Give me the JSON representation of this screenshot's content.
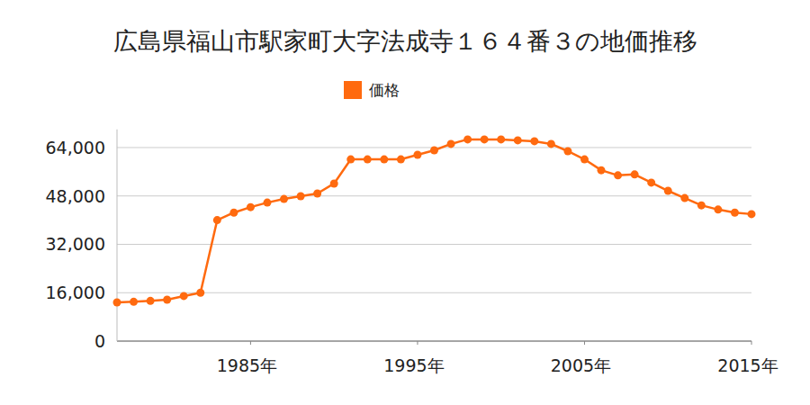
{
  "chart_data": {
    "type": "line",
    "title": "広島県福山市駅家町大字法成寺１６４番３の地価推移",
    "x": [
      1977,
      1978,
      1979,
      1980,
      1981,
      1982,
      1983,
      1984,
      1985,
      1986,
      1987,
      1988,
      1989,
      1990,
      1991,
      1992,
      1993,
      1994,
      1995,
      1996,
      1997,
      1998,
      1999,
      2000,
      2001,
      2002,
      2003,
      2004,
      2005,
      2006,
      2007,
      2008,
      2009,
      2010,
      2011,
      2012,
      2013,
      2014,
      2015
    ],
    "series": [
      {
        "name": "価格",
        "color": "#ff6a0f",
        "marker": "circle",
        "values": [
          12800,
          13000,
          13300,
          13700,
          14900,
          16000,
          40000,
          42500,
          44300,
          45800,
          47000,
          47900,
          48800,
          52100,
          60100,
          60100,
          60100,
          60100,
          61600,
          63100,
          65200,
          66700,
          66700,
          66700,
          66400,
          66100,
          65200,
          62800,
          60100,
          56500,
          54800,
          55100,
          52400,
          49700,
          47300,
          44900,
          43500,
          42500,
          42000
        ]
      }
    ],
    "xlim": [
      1977,
      2015
    ],
    "xticks": [
      {
        "value": 1985,
        "label": "1985年"
      },
      {
        "value": 1995,
        "label": "1995年"
      },
      {
        "value": 2005,
        "label": "2005年"
      },
      {
        "value": 2015,
        "label": "2015年"
      }
    ],
    "ylim": [
      0,
      70000
    ],
    "yticks": [
      0,
      {
        "value": 16000,
        "label": "16,000"
      },
      {
        "value": 32000,
        "label": "32,000"
      },
      {
        "value": 48000,
        "label": "48,000"
      },
      {
        "value": 64000,
        "label": "64,000"
      }
    ],
    "grid": true,
    "legend": "top"
  }
}
